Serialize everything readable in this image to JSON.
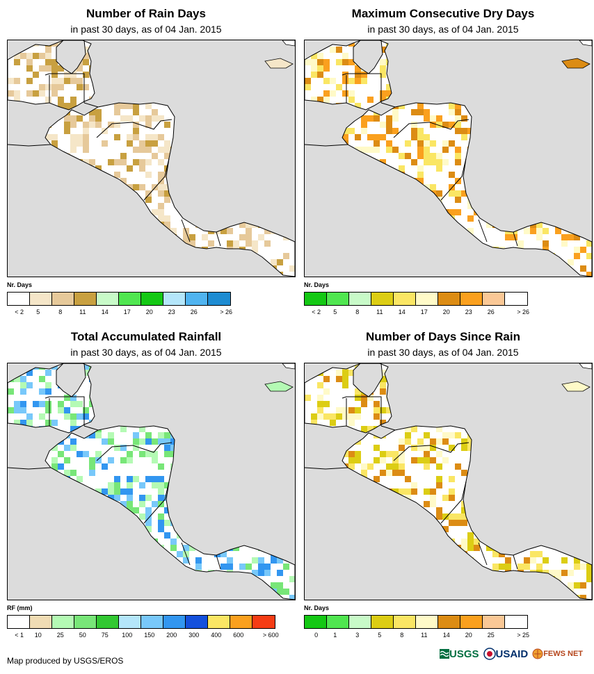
{
  "panels": [
    {
      "id": "rain-days",
      "title": "Number of Rain Days",
      "subtitle": "in past 30 days, as of 04 Jan. 2015",
      "legend_label": "Nr. Days",
      "legend_colors": [
        "#ffffff",
        "#f5e6c8",
        "#e6c99a",
        "#c8a040",
        "#c8fac8",
        "#50e650",
        "#14c814",
        "#b4e6fa",
        "#50b4f0",
        "#1e8cd2"
      ],
      "legend_ticks": [
        "< 2",
        "5",
        "8",
        "11",
        "14",
        "17",
        "20",
        "23",
        "26",
        "> 26"
      ],
      "dominant_color": "#ffffff",
      "accent_colors": [
        "#f5e6c8",
        "#e6c99a",
        "#c8a040"
      ]
    },
    {
      "id": "max-dry-days",
      "title": "Maximum Consecutive Dry Days",
      "subtitle": "in past 30 days, as of 04 Jan. 2015",
      "legend_label": "Nr. Days",
      "legend_colors": [
        "#14c814",
        "#50e650",
        "#c8fac8",
        "#dccd14",
        "#fae664",
        "#fffac8",
        "#dc8c14",
        "#faa01e",
        "#fac896",
        "#ffffff"
      ],
      "legend_ticks": [
        "< 2",
        "5",
        "8",
        "11",
        "14",
        "17",
        "20",
        "23",
        "26",
        "> 26"
      ],
      "dominant_color": "#ffffff",
      "accent_colors": [
        "#dc8c14",
        "#faa01e",
        "#fae664",
        "#fffac8"
      ]
    },
    {
      "id": "total-rainfall",
      "title": "Total Accumulated Rainfall",
      "subtitle": "in past 30 days, as of 04 Jan. 2015",
      "legend_label": "RF (mm)",
      "legend_colors": [
        "#ffffff",
        "#f0dcb4",
        "#b4fab4",
        "#78e678",
        "#32c832",
        "#b4e6fa",
        "#78c8fa",
        "#3296f0",
        "#1450dc",
        "#fae664",
        "#faa01e",
        "#f53c14"
      ],
      "legend_ticks": [
        "< 1",
        "10",
        "25",
        "50",
        "75",
        "100",
        "150",
        "200",
        "300",
        "400",
        "600",
        "> 600"
      ],
      "dominant_color": "#ffffff",
      "accent_colors": [
        "#b4fab4",
        "#78e678",
        "#78c8fa",
        "#3296f0"
      ]
    },
    {
      "id": "days-since-rain",
      "title": "Number of Days Since Rain",
      "subtitle": "in past 30 days, as of 04 Jan. 2015",
      "legend_label": "Nr. Days",
      "legend_colors": [
        "#14c814",
        "#50e650",
        "#c8fac8",
        "#dccd14",
        "#fae664",
        "#fffac8",
        "#dc8c14",
        "#faa01e",
        "#fac896",
        "#ffffff"
      ],
      "legend_ticks": [
        "0",
        "1",
        "3",
        "5",
        "8",
        "11",
        "14",
        "20",
        "25",
        "> 25"
      ],
      "dominant_color": "#ffffff",
      "accent_colors": [
        "#fffac8",
        "#fae664",
        "#dccd14",
        "#dc8c14"
      ]
    }
  ],
  "footer": {
    "credit": "Map produced by USGS/EROS"
  },
  "logos": {
    "usgs": "USGS",
    "usaid": "USAID",
    "fews": "FEWS NET"
  },
  "colors": {
    "ocean": "#dcdcdc",
    "border": "#000000"
  }
}
